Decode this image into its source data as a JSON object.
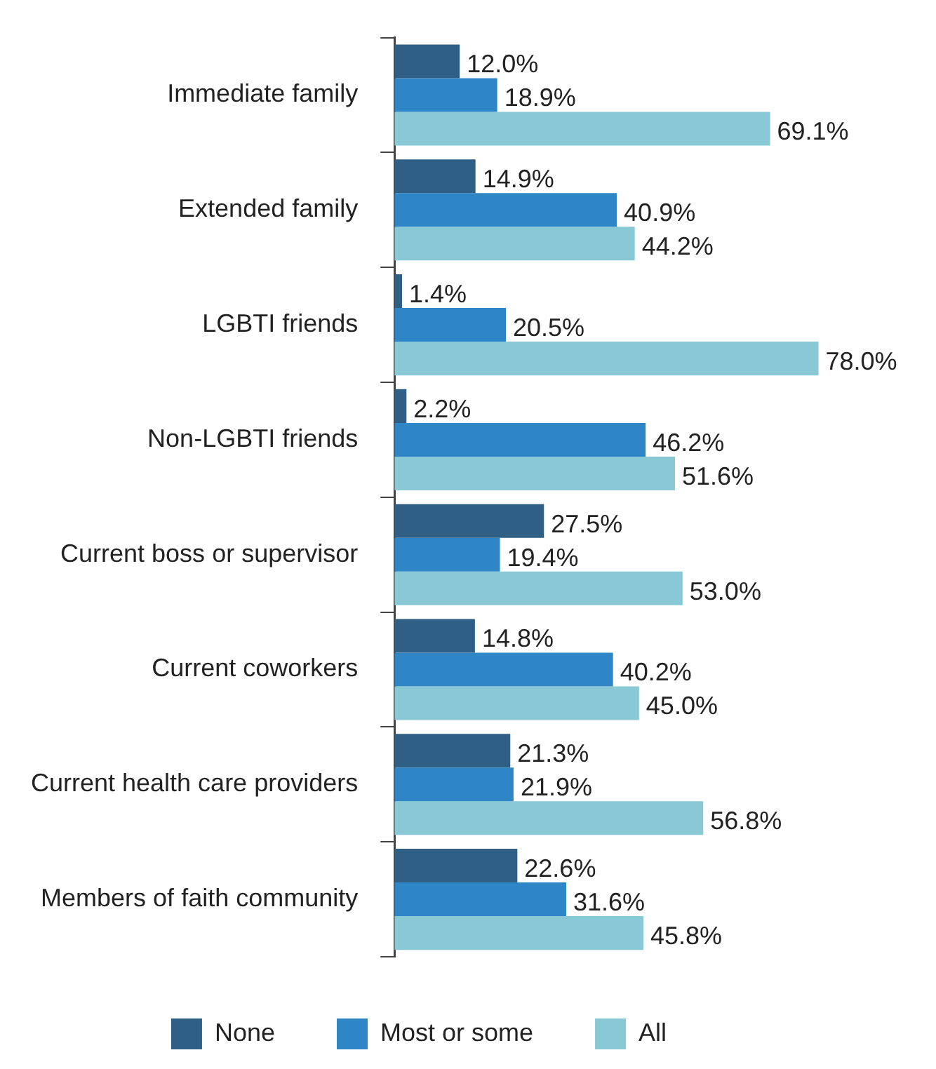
{
  "chart_data": {
    "type": "bar",
    "orientation": "horizontal",
    "categories": [
      "Immediate family",
      "Extended family",
      "LGBTI friends",
      "Non-LGBTI friends",
      "Current boss or supervisor",
      "Current coworkers",
      "Current health care providers",
      "Members of faith community"
    ],
    "series": [
      {
        "name": "None",
        "color": "#2f5f85",
        "values": [
          12.0,
          14.9,
          1.4,
          2.2,
          27.5,
          14.8,
          21.3,
          22.6
        ],
        "value_labels": [
          "12.0%",
          "14.9%",
          "1.4%",
          "2.2%",
          "27.5%",
          "14.8%",
          "21.3%",
          "22.6%"
        ]
      },
      {
        "name": "Most or some",
        "color": "#2e86c6",
        "values": [
          18.9,
          40.9,
          20.5,
          46.2,
          19.4,
          40.2,
          21.9,
          31.6
        ],
        "value_labels": [
          "18.9%",
          "40.9%",
          "20.5%",
          "46.2%",
          "19.4%",
          "40.2%",
          "21.9%",
          "31.6%"
        ]
      },
      {
        "name": "All",
        "color": "#88c9d5",
        "values": [
          69.1,
          44.2,
          78.0,
          51.6,
          53.0,
          45.0,
          56.8,
          45.8
        ],
        "value_labels": [
          "69.1%",
          "44.2%",
          "78.0%",
          "51.6%",
          "53.0%",
          "45.0%",
          "56.8%",
          "45.8%"
        ]
      }
    ],
    "tick_labels": "y",
    "legend": "bottom"
  }
}
